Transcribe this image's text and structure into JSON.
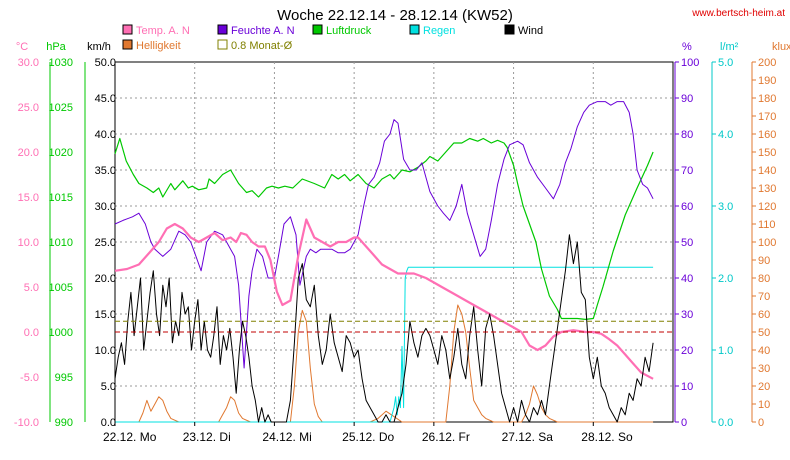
{
  "chart_data": {
    "type": "line",
    "title": "Woche 22.12.14 - 28.12.14 (KW52)",
    "source": "www.bertsch-heim.at",
    "x_labels": [
      "22.12. Mo",
      "23.12. Di",
      "24.12. Mi",
      "25.12. Do",
      "26.12. Fr",
      "27.12. Sa",
      "28.12. So"
    ],
    "axes": [
      {
        "unit": "°C",
        "color": "#ff6fb4",
        "min": -10.0,
        "max": 30.0,
        "ticks": [
          "30.0",
          "25.0",
          "20.0",
          "15.0",
          "10.0",
          "5.0",
          "0.0",
          "-5.0",
          "-10.0"
        ]
      },
      {
        "unit": "hPa",
        "color": "#00c800",
        "min": 990,
        "max": 1030,
        "ticks": [
          "1030",
          "1025",
          "1020",
          "1015",
          "1010",
          "1005",
          "1000",
          "995",
          "990"
        ]
      },
      {
        "unit": "km/h",
        "color": "#000000",
        "min": 0,
        "max": 50,
        "ticks": [
          "50.0",
          "45.0",
          "40.0",
          "35.0",
          "30.0",
          "25.0",
          "20.0",
          "15.0",
          "10.0",
          "5.0",
          "0.0"
        ]
      },
      {
        "unit": "%",
        "color": "#6a00d8",
        "min": 0,
        "max": 100,
        "ticks": [
          "100",
          "90",
          "80",
          "70",
          "60",
          "50",
          "40",
          "30",
          "20",
          "10",
          "0"
        ]
      },
      {
        "unit": "l/m²",
        "color": "#00c8c8",
        "min": 0,
        "max": 5,
        "ticks": [
          "5.0",
          "4.0",
          "3.0",
          "2.0",
          "1.0",
          "0.0"
        ]
      },
      {
        "unit": "klux",
        "color": "#e07830",
        "min": 0,
        "max": 200,
        "ticks": [
          "200",
          "190",
          "180",
          "170",
          "160",
          "150",
          "140",
          "130",
          "120",
          "110",
          "100",
          "90",
          "80",
          "70",
          "60",
          "50",
          "40",
          "30",
          "20",
          "10",
          "0"
        ]
      }
    ],
    "legend": [
      {
        "label": "Temp. A. N",
        "color": "#ff6fb4"
      },
      {
        "label": "Helligkeit",
        "color": "#e07830"
      },
      {
        "label": "Feuchte A. N",
        "color": "#6a00d8"
      },
      {
        "label": "0.8 Monat-Ø",
        "color": "#808000"
      },
      {
        "label": "Luftdruck",
        "color": "#00c800"
      },
      {
        "label": "Regen",
        "color": "#00e0e0"
      },
      {
        "label": "Wind",
        "color": "#000000"
      }
    ],
    "reference_lines": [
      {
        "name": "0.8 Monat-Ø",
        "axis": "°C",
        "value": 1.2,
        "color": "#808000"
      },
      {
        "name": "0 °C",
        "axis": "°C",
        "value": 0.0,
        "color": "#c00000"
      }
    ],
    "series": [
      {
        "name": "Luftdruck",
        "axis": "hPa",
        "color": "#00c800",
        "x": [
          0.0,
          0.06,
          0.14,
          0.23,
          0.3,
          0.4,
          0.48,
          0.55,
          0.6,
          0.7,
          0.75,
          0.85,
          0.92,
          0.97,
          1.05,
          1.15,
          1.18,
          1.25,
          1.35,
          1.45,
          1.55,
          1.65,
          1.72,
          1.8,
          1.9,
          1.97,
          2.05,
          2.13,
          2.23,
          2.35,
          2.5,
          2.63,
          2.72,
          2.8,
          2.88,
          2.95,
          3.05,
          3.15,
          3.25,
          3.35,
          3.45,
          3.5,
          3.6,
          3.7,
          3.8,
          3.9,
          3.95,
          4.05,
          4.15,
          4.25,
          4.35,
          4.45,
          4.55,
          4.62,
          4.72,
          4.8,
          4.88,
          4.92,
          5.0,
          5.05,
          5.12,
          5.2,
          5.28,
          5.35,
          5.45,
          5.55,
          5.6,
          5.7,
          5.8,
          5.9,
          6.0,
          6.05,
          6.12,
          6.25,
          6.4,
          6.55,
          6.68,
          6.75
        ],
        "values": [
          1019.8,
          1021.5,
          1019.0,
          1017.5,
          1016.5,
          1016.0,
          1015.5,
          1016.0,
          1015.0,
          1016.5,
          1015.8,
          1016.8,
          1016.0,
          1016.2,
          1015.8,
          1016.0,
          1017.0,
          1016.5,
          1017.5,
          1018.0,
          1016.5,
          1015.5,
          1015.7,
          1015.0,
          1016.0,
          1016.2,
          1016.0,
          1016.2,
          1016.0,
          1017.0,
          1016.5,
          1016.0,
          1017.5,
          1017.0,
          1017.5,
          1016.8,
          1017.5,
          1016.5,
          1016.0,
          1017.0,
          1017.5,
          1017.0,
          1018.0,
          1017.8,
          1018.3,
          1019.0,
          1019.5,
          1019.0,
          1020.0,
          1021.0,
          1021.0,
          1021.5,
          1021.2,
          1021.5,
          1021.0,
          1021.3,
          1021.0,
          1020.5,
          1018.5,
          1016.5,
          1014.0,
          1012.0,
          1010.0,
          1007.0,
          1004.0,
          1002.5,
          1001.5,
          1001.5,
          1001.5,
          1001.4,
          1001.5,
          1003.0,
          1005.0,
          1009.0,
          1013.0,
          1016.0,
          1018.5,
          1020.0
        ]
      },
      {
        "name": "Feuchte A. N",
        "axis": "%",
        "color": "#6a00d8",
        "x": [
          0.0,
          0.1,
          0.22,
          0.3,
          0.38,
          0.45,
          0.5,
          0.6,
          0.7,
          0.8,
          0.88,
          0.95,
          1.0,
          1.08,
          1.15,
          1.25,
          1.35,
          1.45,
          1.5,
          1.55,
          1.62,
          1.68,
          1.72,
          1.78,
          1.85,
          1.92,
          2.0,
          2.05,
          2.12,
          2.2,
          2.27,
          2.32,
          2.4,
          2.45,
          2.52,
          2.58,
          2.65,
          2.72,
          2.8,
          2.88,
          2.95,
          3.05,
          3.12,
          3.18,
          3.25,
          3.32,
          3.38,
          3.45,
          3.5,
          3.55,
          3.62,
          3.7,
          3.78,
          3.85,
          3.9,
          3.95,
          4.05,
          4.12,
          4.2,
          4.28,
          4.35,
          4.42,
          4.5,
          4.58,
          4.65,
          4.72,
          4.8,
          4.88,
          4.95,
          5.05,
          5.12,
          5.2,
          5.3,
          5.4,
          5.5,
          5.58,
          5.65,
          5.72,
          5.8,
          5.88,
          5.95,
          6.05,
          6.15,
          6.22,
          6.3,
          6.38,
          6.45,
          6.5,
          6.55,
          6.62,
          6.68,
          6.75
        ],
        "values": [
          55,
          56,
          57,
          58,
          55,
          50,
          48,
          46,
          48,
          53,
          52,
          50,
          47,
          42,
          50,
          53,
          52,
          48,
          46,
          38,
          15,
          35,
          42,
          48,
          46,
          40,
          40,
          46,
          55,
          57,
          52,
          38,
          46,
          48,
          47,
          48,
          48,
          48,
          47,
          47,
          48,
          52,
          60,
          66,
          68,
          72,
          78,
          80,
          84,
          83,
          73,
          70,
          70,
          72,
          68,
          64,
          60,
          58,
          56,
          60,
          66,
          58,
          52,
          46,
          48,
          56,
          66,
          73,
          77,
          78,
          77,
          72,
          68,
          65,
          62,
          66,
          72,
          76,
          82,
          86,
          88,
          89,
          89,
          88,
          89,
          89,
          86,
          80,
          70,
          66,
          65,
          62
        ]
      },
      {
        "name": "Temp. A. N",
        "axis": "°C",
        "color": "#ff6fb4",
        "x": [
          0.0,
          0.15,
          0.3,
          0.45,
          0.55,
          0.65,
          0.75,
          0.85,
          0.95,
          1.05,
          1.15,
          1.25,
          1.35,
          1.45,
          1.52,
          1.58,
          1.65,
          1.72,
          1.8,
          1.88,
          1.95,
          2.03,
          2.1,
          2.2,
          2.3,
          2.4,
          2.5,
          2.6,
          2.7,
          2.8,
          2.9,
          3.0,
          3.05,
          3.15,
          3.25,
          3.35,
          3.45,
          3.55,
          3.62,
          3.75,
          3.9,
          4.0,
          4.1,
          4.2,
          4.3,
          4.4,
          4.5,
          4.6,
          4.7,
          4.8,
          4.9,
          5.0,
          5.1,
          5.2,
          5.3,
          5.4,
          5.5,
          5.6,
          5.75,
          5.9,
          6.0,
          6.1,
          6.2,
          6.3,
          6.4,
          6.5,
          6.6,
          6.75
        ],
        "values": [
          6.8,
          7.0,
          7.5,
          9.0,
          10.0,
          11.5,
          12.0,
          11.5,
          10.5,
          10.0,
          10.5,
          11.0,
          10.2,
          10.5,
          10.0,
          11.0,
          10.8,
          10.0,
          9.5,
          9.5,
          8.0,
          4.5,
          3.0,
          3.5,
          8.5,
          12.5,
          10.5,
          10.0,
          9.5,
          10.0,
          10.0,
          10.5,
          10.5,
          9.5,
          8.5,
          7.5,
          7.0,
          6.5,
          6.5,
          6.5,
          6.0,
          5.5,
          5.0,
          4.5,
          4.0,
          3.5,
          3.0,
          2.5,
          2.0,
          1.5,
          1.0,
          0.5,
          0.0,
          -1.5,
          -2.0,
          -1.5,
          -0.5,
          0.0,
          0.2,
          0.0,
          0.0,
          -0.2,
          -0.8,
          -1.5,
          -2.5,
          -3.5,
          -4.5,
          -5.2
        ]
      },
      {
        "name": "Regen",
        "axis": "l/m²",
        "color": "#00e0e0",
        "x": [
          0.0,
          3.45,
          3.5,
          3.52,
          3.54,
          3.56,
          3.58,
          3.6,
          3.62,
          3.64,
          3.66,
          3.68,
          3.7,
          3.72,
          3.74,
          4.2,
          5.0,
          6.0,
          6.75
        ],
        "values": [
          0.0,
          0.0,
          0.2,
          0.35,
          0.1,
          0.35,
          0.2,
          1.05,
          0.2,
          2.0,
          2.1,
          2.15,
          2.15,
          2.15,
          2.15,
          2.15,
          2.15,
          2.15,
          2.15
        ]
      },
      {
        "name": "Wind",
        "axis": "km/h",
        "color": "#000000",
        "x": [
          0.0,
          0.04,
          0.08,
          0.12,
          0.16,
          0.2,
          0.24,
          0.28,
          0.32,
          0.36,
          0.4,
          0.44,
          0.48,
          0.52,
          0.56,
          0.6,
          0.64,
          0.68,
          0.72,
          0.76,
          0.8,
          0.84,
          0.88,
          0.92,
          0.96,
          1.0,
          1.04,
          1.08,
          1.12,
          1.16,
          1.2,
          1.24,
          1.28,
          1.32,
          1.36,
          1.4,
          1.44,
          1.48,
          1.52,
          1.56,
          1.6,
          1.64,
          1.68,
          1.72,
          1.76,
          1.8,
          1.84,
          1.88,
          1.92,
          1.96,
          2.0,
          2.05,
          2.1,
          2.15,
          2.2,
          2.25,
          2.3,
          2.35,
          2.4,
          2.45,
          2.5,
          2.55,
          2.6,
          2.65,
          2.7,
          2.75,
          2.8,
          2.85,
          2.9,
          2.95,
          3.0,
          3.05,
          3.1,
          3.15,
          3.2,
          3.25,
          3.3,
          3.35,
          3.4,
          3.45,
          3.5,
          3.55,
          3.6,
          3.65,
          3.7,
          3.75,
          3.8,
          3.85,
          3.9,
          3.95,
          4.0,
          4.05,
          4.1,
          4.15,
          4.2,
          4.25,
          4.3,
          4.35,
          4.4,
          4.45,
          4.5,
          4.55,
          4.6,
          4.65,
          4.7,
          4.75,
          4.8,
          4.85,
          4.9,
          4.95,
          5.0,
          5.05,
          5.1,
          5.15,
          5.2,
          5.25,
          5.3,
          5.35,
          5.4,
          5.45,
          5.5,
          5.55,
          5.6,
          5.65,
          5.7,
          5.75,
          5.8,
          5.85,
          5.9,
          5.95,
          6.0,
          6.05,
          6.1,
          6.15,
          6.2,
          6.25,
          6.3,
          6.35,
          6.4,
          6.45,
          6.5,
          6.55,
          6.6,
          6.65,
          6.7,
          6.75
        ],
        "values": [
          6,
          9,
          11,
          8,
          14,
          18,
          12,
          16,
          20,
          10,
          14,
          18,
          21,
          15,
          12,
          19,
          16,
          20,
          11,
          14,
          12,
          18,
          15,
          16,
          10,
          14,
          17,
          10,
          14,
          10,
          9,
          12,
          16,
          8,
          12,
          10,
          13,
          9,
          4,
          10,
          14,
          12,
          9,
          5,
          3,
          0,
          2,
          0,
          1,
          0,
          0,
          0,
          0,
          0,
          3,
          11,
          20,
          22,
          17,
          16,
          19,
          12,
          8,
          10,
          15,
          11,
          9,
          7,
          12,
          11,
          9,
          10,
          6,
          3,
          2,
          1,
          0,
          0,
          1,
          0,
          0,
          2,
          4,
          8,
          14,
          11,
          9,
          12,
          13,
          12,
          10,
          8,
          12,
          10,
          6,
          9,
          13,
          8,
          6,
          12,
          16,
          10,
          5,
          13,
          15,
          12,
          8,
          4,
          2,
          0,
          2,
          0,
          3,
          1,
          0,
          2,
          1,
          3,
          1,
          5,
          9,
          13,
          17,
          21,
          26,
          22,
          25,
          18,
          17,
          9,
          6,
          9,
          5,
          4,
          2,
          1,
          0,
          2,
          1,
          4,
          3,
          6,
          5,
          9,
          7,
          11
        ]
      },
      {
        "name": "Helligkeit",
        "axis": "klux",
        "color": "#e07830",
        "x": [
          0.0,
          0.3,
          0.35,
          0.4,
          0.45,
          0.5,
          0.55,
          0.6,
          0.65,
          0.7,
          0.8,
          1.3,
          1.35,
          1.4,
          1.45,
          1.5,
          1.55,
          1.6,
          1.7,
          2.2,
          2.25,
          2.3,
          2.35,
          2.4,
          2.45,
          2.5,
          2.55,
          2.6,
          3.2,
          3.3,
          3.4,
          3.5,
          3.6,
          4.15,
          4.2,
          4.25,
          4.3,
          4.35,
          4.4,
          4.45,
          4.5,
          4.55,
          4.6,
          4.65,
          4.75,
          5.1,
          5.15,
          5.2,
          5.25,
          5.3,
          5.35,
          5.4,
          5.45,
          5.55,
          6.3,
          6.75
        ],
        "values": [
          0,
          0,
          5,
          12,
          6,
          10,
          14,
          12,
          6,
          2,
          0,
          0,
          4,
          8,
          14,
          12,
          5,
          2,
          0,
          0,
          20,
          50,
          62,
          56,
          30,
          10,
          3,
          0,
          0,
          2,
          6,
          3,
          0,
          0,
          20,
          50,
          65,
          60,
          50,
          30,
          12,
          8,
          4,
          2,
          0,
          0,
          4,
          10,
          20,
          15,
          8,
          4,
          2,
          0,
          0,
          0
        ]
      }
    ]
  }
}
